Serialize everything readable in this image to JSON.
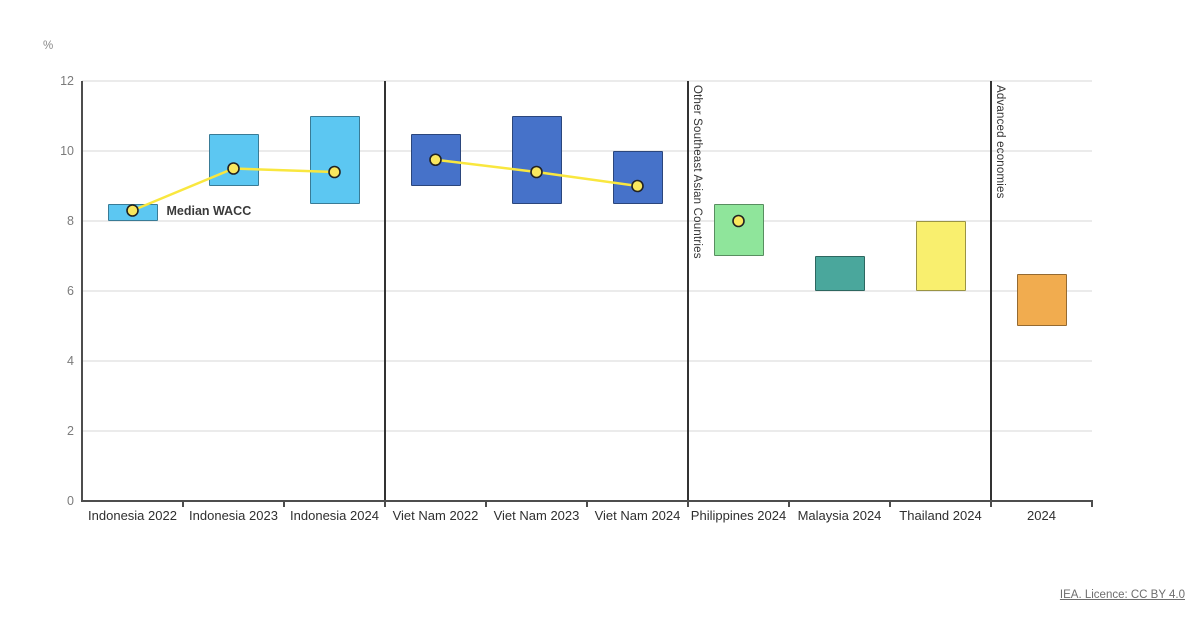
{
  "footer": {
    "license_text": "IEA. Licence: CC BY 4.0"
  },
  "chart_data": {
    "type": "range-bar",
    "title": "",
    "ylabel": "%",
    "xlabel": "",
    "ylim": [
      0,
      12
    ],
    "yticks": [
      0,
      2,
      4,
      6,
      8,
      10,
      12
    ],
    "grid": true,
    "legend_position": "inline-annotation",
    "annotation": {
      "text": "Median WACC",
      "attached_to": "Indonesia 2022"
    },
    "categories": [
      "Indonesia 2022",
      "Indonesia 2023",
      "Indonesia 2024",
      "Viet Nam 2022",
      "Viet Nam 2023",
      "Viet Nam 2024",
      "Philippines 2024",
      "Malaysia 2024",
      "Thailand 2024",
      "2024"
    ],
    "bars": [
      {
        "category": "Indonesia 2022",
        "low": 8.0,
        "high": 8.5,
        "median": 8.3,
        "fill": "#5CC7F2",
        "line_group": "indonesia"
      },
      {
        "category": "Indonesia 2023",
        "low": 9.0,
        "high": 10.5,
        "median": 9.5,
        "fill": "#5CC7F2",
        "line_group": "indonesia"
      },
      {
        "category": "Indonesia 2024",
        "low": 8.5,
        "high": 11.0,
        "median": 9.4,
        "fill": "#5CC7F2",
        "line_group": "indonesia"
      },
      {
        "category": "Viet Nam 2022",
        "low": 9.0,
        "high": 10.5,
        "median": 9.75,
        "fill": "#4672C9",
        "line_group": "vietnam"
      },
      {
        "category": "Viet Nam 2023",
        "low": 8.5,
        "high": 11.0,
        "median": 9.4,
        "fill": "#4672C9",
        "line_group": "vietnam"
      },
      {
        "category": "Viet Nam 2024",
        "low": 8.5,
        "high": 10.0,
        "median": 9.0,
        "fill": "#4672C9",
        "line_group": "vietnam"
      },
      {
        "category": "Philippines 2024",
        "low": 7.0,
        "high": 8.5,
        "median": 8.0,
        "fill": "#8FE59B",
        "line_group": null
      },
      {
        "category": "Malaysia 2024",
        "low": 6.0,
        "high": 7.0,
        "median": null,
        "fill": "#4AA79C",
        "line_group": null
      },
      {
        "category": "Thailand 2024",
        "low": 6.0,
        "high": 8.0,
        "median": null,
        "fill": "#F9EF6E",
        "line_group": null
      },
      {
        "category": "2024",
        "low": 5.0,
        "high": 6.5,
        "median": null,
        "fill": "#F1AC4F",
        "line_group": null
      }
    ],
    "connect_median_groups": [
      "indonesia",
      "vietnam"
    ],
    "separators": [
      {
        "after_index": 2,
        "label": ""
      },
      {
        "after_index": 5,
        "label": "Other Southeast Asian Countries"
      },
      {
        "after_index": 8,
        "label": "Advanced economies"
      }
    ],
    "colors": {
      "median_line": "#F9E73F",
      "median_dot_fill": "#F9E75E",
      "median_dot_stroke": "#222222",
      "bar_border": "rgba(0,0,0,0.38)",
      "gridline": "#ebebeb",
      "axis": "#4d4d4d",
      "separator": "#333333"
    }
  }
}
